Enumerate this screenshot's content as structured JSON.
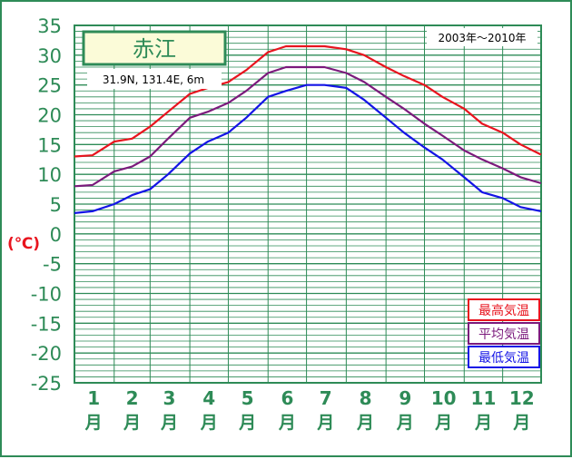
{
  "station": {
    "name": "赤江",
    "location": "31.9N,  131.4E,  6m",
    "period": "2003年～2010年"
  },
  "chart_data": {
    "type": "line",
    "ylabel": "(℃)",
    "ylim": [
      -25,
      35
    ],
    "yticks": [
      "35",
      "30",
      "25",
      "20",
      "15",
      "10",
      "5",
      "0",
      "-5",
      "-10",
      "-15",
      "-20",
      "-25"
    ],
    "months": [
      "1",
      "2",
      "3",
      "4",
      "5",
      "6",
      "7",
      "8",
      "9",
      "10",
      "11",
      "12"
    ],
    "month_suffix": "月",
    "grid": "on",
    "legend_position": "bottom-right",
    "x_days": [
      1,
      15,
      32,
      46,
      60,
      74,
      91,
      105,
      121,
      135,
      152,
      166,
      182,
      196,
      213,
      227,
      244,
      258,
      274,
      288,
      305,
      319,
      335,
      349,
      365
    ],
    "series": [
      {
        "name": "最高気温",
        "color": "#e8141e",
        "values": [
          13.0,
          13.2,
          15.5,
          16.0,
          18.0,
          20.5,
          23.5,
          24.5,
          25.5,
          27.5,
          30.5,
          31.5,
          31.5,
          31.5,
          31.0,
          30.0,
          28.0,
          26.5,
          25.0,
          23.0,
          21.0,
          18.5,
          17.0,
          15.0,
          13.3
        ]
      },
      {
        "name": "平均気温",
        "color": "#7b1a7c",
        "values": [
          8.0,
          8.2,
          10.5,
          11.3,
          13.0,
          16.0,
          19.5,
          20.5,
          22.0,
          24.0,
          27.0,
          28.0,
          28.0,
          28.0,
          27.0,
          25.5,
          23.0,
          21.0,
          18.5,
          16.5,
          14.0,
          12.5,
          11.0,
          9.5,
          8.5
        ]
      },
      {
        "name": "最低気温",
        "color": "#1414e6",
        "values": [
          3.5,
          3.8,
          5.0,
          6.5,
          7.5,
          10.0,
          13.5,
          15.5,
          17.0,
          19.5,
          23.0,
          24.0,
          25.0,
          25.0,
          24.5,
          22.5,
          19.5,
          17.0,
          14.5,
          12.5,
          9.5,
          7.0,
          6.0,
          4.5,
          3.8
        ]
      }
    ]
  },
  "colors": {
    "axis_text": "#2e8b57",
    "grid": "#2e8b57",
    "ylabel": "#e8141e",
    "title_bg": "#fbfbd8"
  }
}
